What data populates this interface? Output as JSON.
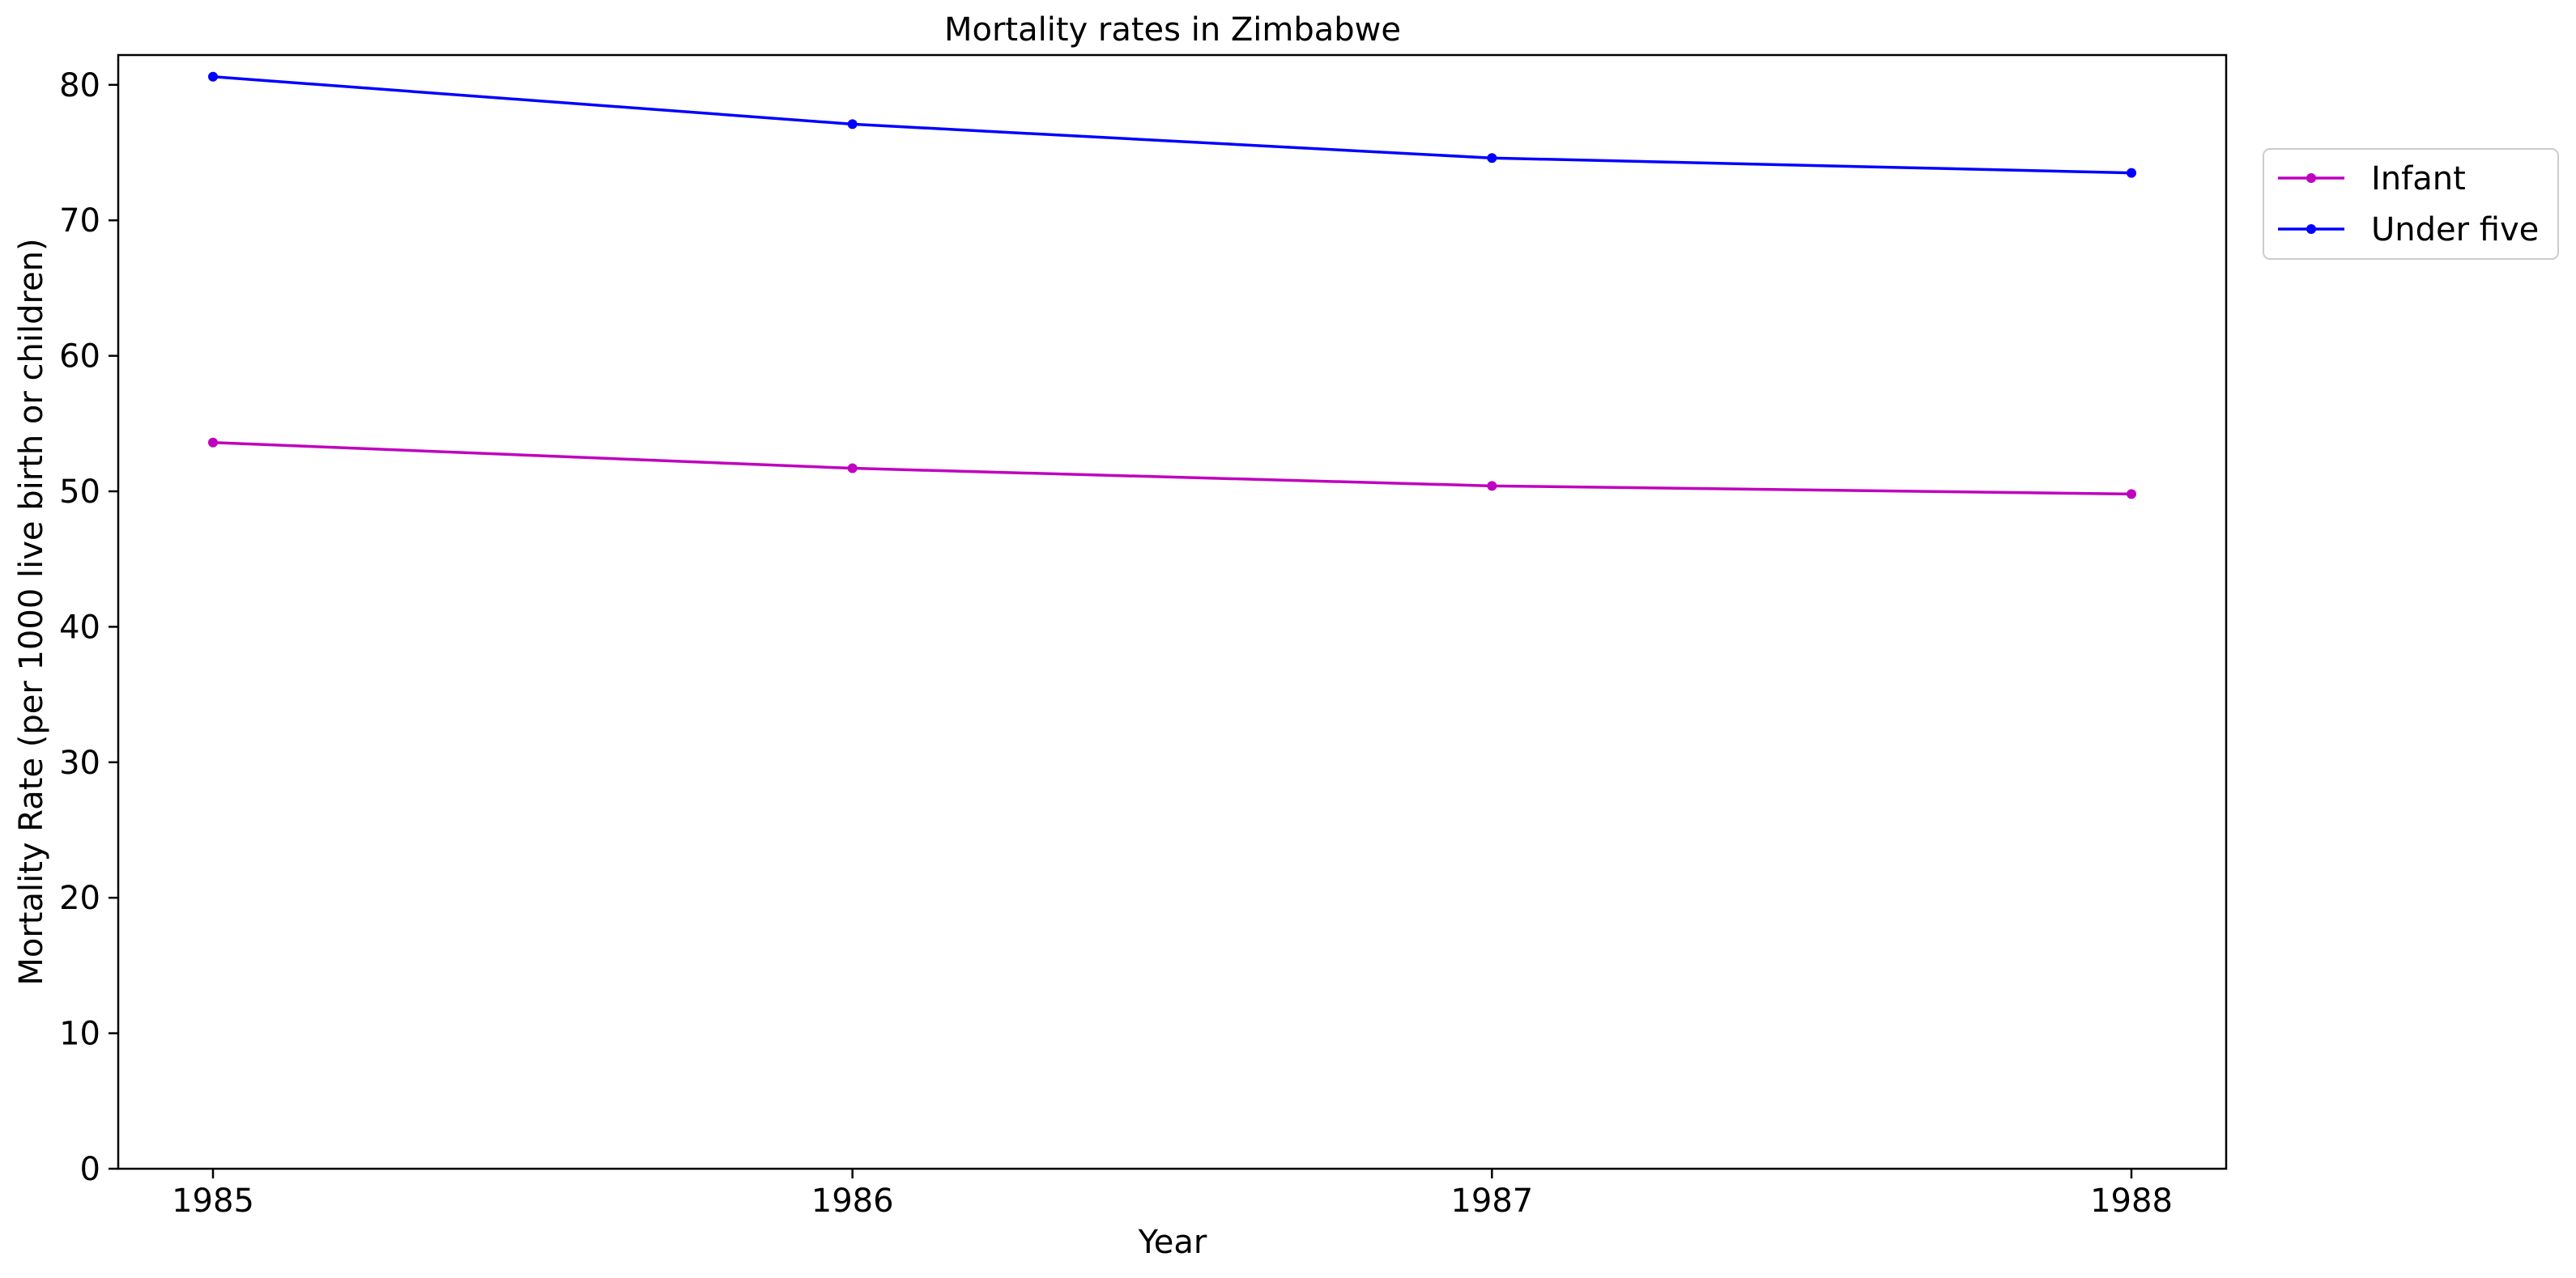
{
  "chart_data": {
    "type": "line",
    "title": "Mortality rates in Zimbabwe",
    "xlabel": "Year",
    "ylabel": "Mortality Rate (per 1000 live birth or children)",
    "x": [
      1985,
      1986,
      1987,
      1988
    ],
    "xticks": [
      "1985",
      "1986",
      "1987",
      "1988"
    ],
    "yticks": [
      "0",
      "10",
      "20",
      "30",
      "40",
      "50",
      "60",
      "70",
      "80"
    ],
    "ylim": [
      0,
      82.2
    ],
    "grid": false,
    "legend_position": "outside-top-right",
    "series": [
      {
        "name": "Infant",
        "color": "#bf00bf",
        "marker": "dot",
        "values": [
          53.6,
          51.7,
          50.4,
          49.8
        ]
      },
      {
        "name": "Under five",
        "color": "#0000ff",
        "marker": "dot",
        "values": [
          80.6,
          77.1,
          74.6,
          73.5
        ]
      }
    ]
  }
}
